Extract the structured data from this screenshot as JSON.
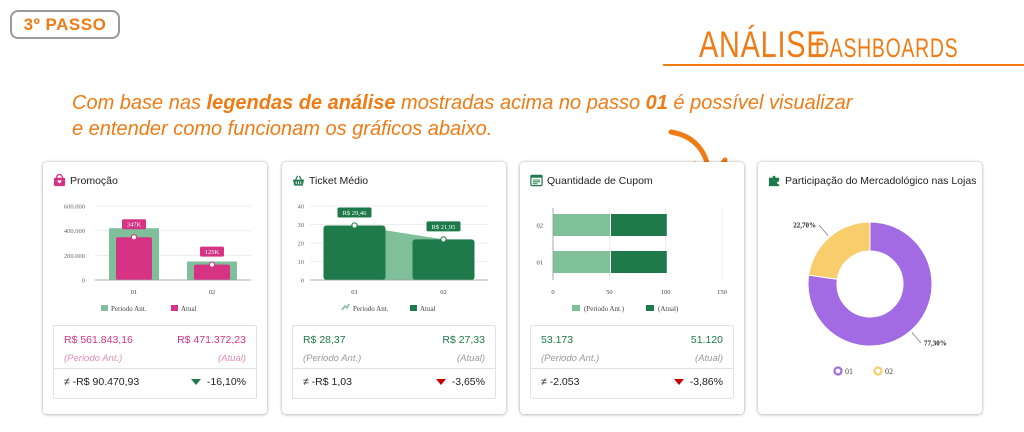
{
  "header": {
    "step_badge": "3º PASSO",
    "brand_main": "ANÁLISE",
    "brand_sub": "DASHBOARDS",
    "intro_1": "Com base nas ",
    "intro_bold_1": "legendas de análise",
    "intro_2": " mostradas acima no passo ",
    "intro_bold_2": "01",
    "intro_3": " é possível visualizar",
    "intro_4": "e entender como funcionam os gráficos abaixo."
  },
  "colors": {
    "orange": "#f07b14",
    "pink": "#d63384",
    "pink_light": "#f39bc6",
    "green_dark": "#1e7a4a",
    "green_light": "#7fbf9a",
    "purple": "#a36be3",
    "yellow": "#f8cd6c"
  },
  "cards": {
    "promocao": {
      "title": "Promoção",
      "icon": "shopping-bag-icon",
      "stats": {
        "prev_value": "R$ 561.843,16",
        "curr_value": "R$ 471.372,23",
        "prev_label": "(Periodo Ant.)",
        "curr_label": "(Atual)",
        "diff": "≠ -R$ 90.470,93",
        "pct": "-16,10%"
      }
    },
    "ticket": {
      "title": "Ticket Médio",
      "icon": "basket-icon",
      "stats": {
        "prev_value": "R$ 28,37",
        "curr_value": "R$ 27,33",
        "prev_label": "(Periodo Ant.)",
        "curr_label": "(Atual)",
        "diff": "≠ -R$ 1,03",
        "pct": "-3,65%"
      }
    },
    "cupom": {
      "title": "Quantidade de Cupom",
      "icon": "receipt-icon",
      "stats": {
        "prev_value": "53.173",
        "curr_value": "51.120",
        "prev_label": "(Periodo Ant.)",
        "curr_label": "(Atual)",
        "diff": "≠ -2.053",
        "pct": "-3,86%"
      }
    },
    "participacao": {
      "title": "Participação do Mercadológico nas Lojas",
      "icon": "puzzle-icon"
    }
  },
  "chart_data": [
    {
      "type": "bar",
      "categories": [
        "01",
        "02"
      ],
      "series": [
        {
          "name": "Periodo Ant.",
          "values": [
            420000,
            150000
          ]
        },
        {
          "name": "Atual",
          "values": [
            347000,
            125000
          ]
        }
      ],
      "data_labels": [
        "347K",
        "125K"
      ],
      "yticks": [
        "0",
        "200.000",
        "400.000",
        "600.000"
      ],
      "ylim": [
        0,
        600000
      ]
    },
    {
      "type": "bar",
      "categories": [
        "01",
        "02"
      ],
      "series": [
        {
          "name": "Periodo Ant.",
          "values": [
            29.46,
            21.95
          ]
        },
        {
          "name": "Atual",
          "values": [
            29.46,
            21.95
          ]
        }
      ],
      "data_labels": [
        "R$ 29,46",
        "R$ 21,95"
      ],
      "yticks": [
        "0",
        "10",
        "20",
        "30",
        "40"
      ],
      "ylim": [
        0,
        40
      ]
    },
    {
      "type": "bar",
      "orientation": "horizontal",
      "categories": [
        "01",
        "02"
      ],
      "series": [
        {
          "name": "(Periodo Ant.)",
          "values": [
            51,
            51
          ]
        },
        {
          "name": "(Atual)",
          "values": [
            50,
            50
          ]
        }
      ],
      "xticks": [
        "0",
        "50",
        "100",
        "150"
      ],
      "xlim": [
        0,
        150
      ]
    },
    {
      "type": "pie",
      "labels": [
        "01",
        "02"
      ],
      "values": [
        77.3,
        22.7
      ],
      "value_labels": [
        "77,30%",
        "22,70%"
      ]
    }
  ]
}
